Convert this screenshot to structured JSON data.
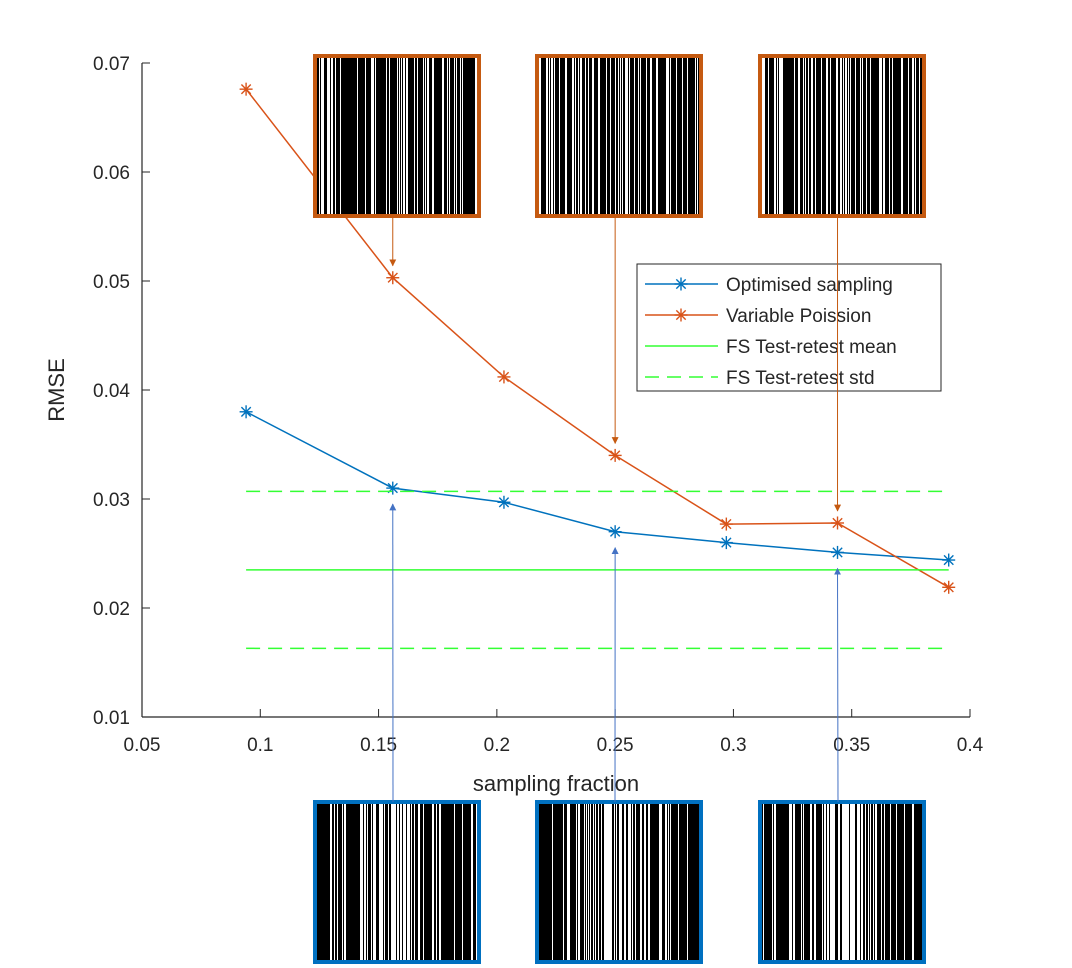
{
  "chart_data": {
    "type": "line",
    "xlabel": "sampling fraction",
    "ylabel": "RMSE",
    "xlim": [
      0.05,
      0.4
    ],
    "ylim": [
      0.01,
      0.07
    ],
    "x_ticks": [
      "0.05",
      "0.1",
      "0.15",
      "0.2",
      "0.25",
      "0.3",
      "0.35",
      "0.4"
    ],
    "y_ticks": [
      "0.01",
      "0.02",
      "0.03",
      "0.04",
      "0.05",
      "0.06",
      "0.07"
    ],
    "grid": false,
    "legend_position": "upper-right",
    "series": [
      {
        "name": "Optimised sampling",
        "color": "#0072BD",
        "marker": "asterisk",
        "x": [
          0.094,
          0.156,
          0.203,
          0.25,
          0.297,
          0.344,
          0.391
        ],
        "y": [
          0.038,
          0.031,
          0.0297,
          0.027,
          0.026,
          0.0251,
          0.0244
        ]
      },
      {
        "name": "Variable Poission",
        "color": "#D95319",
        "marker": "asterisk",
        "x": [
          0.094,
          0.156,
          0.203,
          0.25,
          0.297,
          0.344,
          0.391
        ],
        "y": [
          0.0676,
          0.0503,
          0.0412,
          0.034,
          0.0277,
          0.0278,
          0.0219
        ]
      },
      {
        "name": "FS Test-retest mean",
        "color": "#33ff33",
        "style": "solid",
        "x": [
          0.094,
          0.391
        ],
        "y": [
          0.0235,
          0.0235
        ]
      },
      {
        "name": "FS Test-retest std",
        "color": "#33ff33",
        "style": "dashed",
        "x": [
          0.094,
          0.391
        ],
        "y": [
          0.0307,
          0.0307
        ]
      },
      {
        "name": "",
        "color": "#33ff33",
        "style": "dashed",
        "show_in_legend": false,
        "x": [
          0.094,
          0.391
        ],
        "y": [
          0.0163,
          0.0163
        ]
      }
    ],
    "insets": [
      {
        "group": "Variable Poission",
        "frame_color": "#C55A11",
        "points_to": [
          0.156,
          0.0503
        ],
        "fraction": 0.156
      },
      {
        "group": "Variable Poission",
        "frame_color": "#C55A11",
        "points_to": [
          0.25,
          0.034
        ],
        "fraction": 0.25
      },
      {
        "group": "Variable Poission",
        "frame_color": "#C55A11",
        "points_to": [
          0.344,
          0.0278
        ],
        "fraction": 0.344
      },
      {
        "group": "Optimised sampling",
        "frame_color": "#0070C0",
        "points_to": [
          0.156,
          0.031
        ],
        "fraction": 0.156
      },
      {
        "group": "Optimised sampling",
        "frame_color": "#0070C0",
        "points_to": [
          0.25,
          0.027
        ],
        "fraction": 0.25
      },
      {
        "group": "Optimised sampling",
        "frame_color": "#0070C0",
        "points_to": [
          0.344,
          0.0251
        ],
        "fraction": 0.344
      }
    ]
  }
}
